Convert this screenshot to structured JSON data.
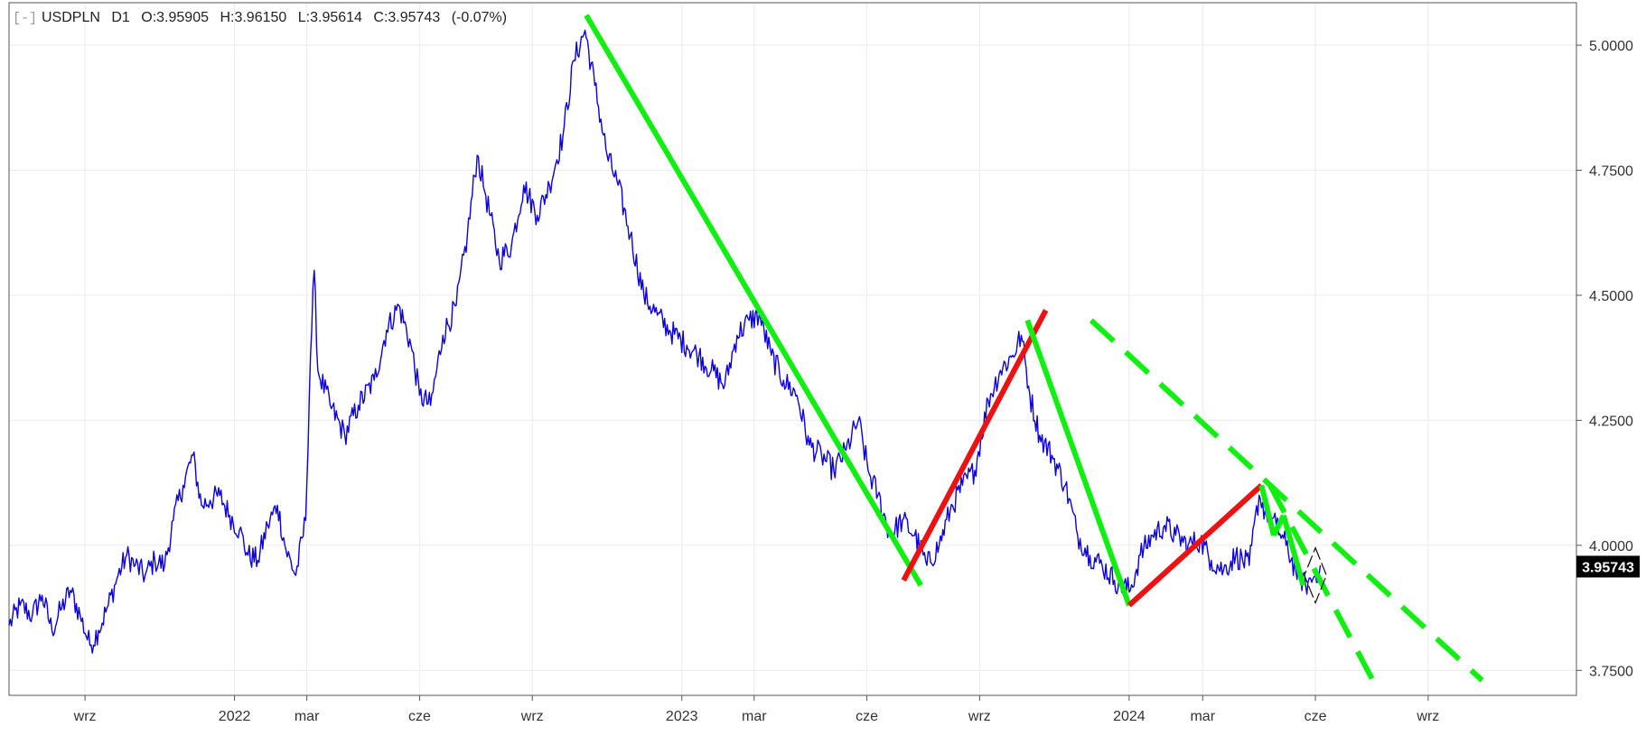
{
  "header": {
    "collapse_label": "[-]",
    "symbol": "USDPLN",
    "timeframe": "D1",
    "open": "O:3.95905",
    "high": "H:3.96150",
    "low": "L:3.95614",
    "close": "C:3.95743",
    "change": "(-0.07%)"
  },
  "colors": {
    "price": "#0b00e0",
    "up_trend": "#ee1111",
    "down_trend": "#11ee11",
    "grid": "#ececec",
    "axis": "#555555",
    "last_price_bg": "#000000"
  },
  "chart_data": {
    "type": "line",
    "symbol": "USDPLN",
    "timeframe": "D1",
    "ylim": [
      3.7,
      5.085
    ],
    "y_ticks": [
      {
        "value": 3.75,
        "label": "3.7500"
      },
      {
        "value": 4.0,
        "label": "4.0000"
      },
      {
        "value": 4.25,
        "label": "4.2500"
      },
      {
        "value": 4.5,
        "label": "4.5000"
      },
      {
        "value": 4.75,
        "label": "4.7500"
      },
      {
        "value": 5.0,
        "label": "5.0000"
      }
    ],
    "x_range": [
      "2021-07-01",
      "2024-12-31"
    ],
    "x_ticks": [
      {
        "date": "2021-09-01",
        "label": "wrz"
      },
      {
        "date": "2022-01-01",
        "label": "2022"
      },
      {
        "date": "2022-03-01",
        "label": "mar"
      },
      {
        "date": "2022-06-01",
        "label": "cze"
      },
      {
        "date": "2022-09-01",
        "label": "wrz"
      },
      {
        "date": "2023-01-01",
        "label": "2023"
      },
      {
        "date": "2023-03-01",
        "label": "mar"
      },
      {
        "date": "2023-06-01",
        "label": "cze"
      },
      {
        "date": "2023-09-01",
        "label": "wrz"
      },
      {
        "date": "2024-01-01",
        "label": "2024"
      },
      {
        "date": "2024-03-01",
        "label": "mar"
      },
      {
        "date": "2024-06-01",
        "label": "cze"
      },
      {
        "date": "2024-09-01",
        "label": "wrz"
      }
    ],
    "last_price": {
      "value": 3.95743,
      "label": "3.95743"
    },
    "grid": true,
    "series": [
      {
        "points": [
          [
            "2021-07-01",
            3.84
          ],
          [
            "2021-07-10",
            3.88
          ],
          [
            "2021-07-20",
            3.86
          ],
          [
            "2021-07-28",
            3.9
          ],
          [
            "2021-08-05",
            3.83
          ],
          [
            "2021-08-12",
            3.87
          ],
          [
            "2021-08-20",
            3.91
          ],
          [
            "2021-08-28",
            3.86
          ],
          [
            "2021-09-05",
            3.8
          ],
          [
            "2021-09-12",
            3.83
          ],
          [
            "2021-09-20",
            3.88
          ],
          [
            "2021-09-28",
            3.94
          ],
          [
            "2021-10-05",
            3.98
          ],
          [
            "2021-10-12",
            3.96
          ],
          [
            "2021-10-20",
            3.94
          ],
          [
            "2021-10-28",
            3.97
          ],
          [
            "2021-11-05",
            3.96
          ],
          [
            "2021-11-12",
            4.05
          ],
          [
            "2021-11-20",
            4.12
          ],
          [
            "2021-11-28",
            4.18
          ],
          [
            "2021-12-05",
            4.08
          ],
          [
            "2021-12-12",
            4.09
          ],
          [
            "2021-12-20",
            4.1
          ],
          [
            "2021-12-28",
            4.06
          ],
          [
            "2022-01-05",
            4.03
          ],
          [
            "2022-01-12",
            3.98
          ],
          [
            "2022-01-20",
            3.97
          ],
          [
            "2022-01-28",
            4.04
          ],
          [
            "2022-02-05",
            4.08
          ],
          [
            "2022-02-12",
            3.99
          ],
          [
            "2022-02-20",
            3.94
          ],
          [
            "2022-02-28",
            4.05
          ],
          [
            "2022-03-04",
            4.38
          ],
          [
            "2022-03-07",
            4.55
          ],
          [
            "2022-03-10",
            4.35
          ],
          [
            "2022-03-20",
            4.28
          ],
          [
            "2022-04-01",
            4.22
          ],
          [
            "2022-04-12",
            4.28
          ],
          [
            "2022-04-25",
            4.33
          ],
          [
            "2022-05-05",
            4.43
          ],
          [
            "2022-05-15",
            4.48
          ],
          [
            "2022-05-25",
            4.4
          ],
          [
            "2022-06-01",
            4.3
          ],
          [
            "2022-06-10",
            4.28
          ],
          [
            "2022-06-20",
            4.42
          ],
          [
            "2022-07-01",
            4.48
          ],
          [
            "2022-07-10",
            4.62
          ],
          [
            "2022-07-18",
            4.78
          ],
          [
            "2022-07-25",
            4.7
          ],
          [
            "2022-08-05",
            4.57
          ],
          [
            "2022-08-15",
            4.6
          ],
          [
            "2022-08-25",
            4.72
          ],
          [
            "2022-09-05",
            4.66
          ],
          [
            "2022-09-15",
            4.72
          ],
          [
            "2022-09-26",
            4.82
          ],
          [
            "2022-10-05",
            4.97
          ],
          [
            "2022-10-14",
            5.03
          ],
          [
            "2022-10-22",
            4.92
          ],
          [
            "2022-11-01",
            4.78
          ],
          [
            "2022-11-10",
            4.72
          ],
          [
            "2022-11-20",
            4.62
          ],
          [
            "2022-12-01",
            4.5
          ],
          [
            "2022-12-12",
            4.46
          ],
          [
            "2022-12-22",
            4.43
          ],
          [
            "2023-01-05",
            4.4
          ],
          [
            "2023-01-15",
            4.38
          ],
          [
            "2023-01-25",
            4.35
          ],
          [
            "2023-02-05",
            4.32
          ],
          [
            "2023-02-15",
            4.42
          ],
          [
            "2023-02-25",
            4.45
          ],
          [
            "2023-03-05",
            4.46
          ],
          [
            "2023-03-15",
            4.38
          ],
          [
            "2023-03-25",
            4.33
          ],
          [
            "2023-04-05",
            4.3
          ],
          [
            "2023-04-15",
            4.2
          ],
          [
            "2023-04-25",
            4.18
          ],
          [
            "2023-05-05",
            4.15
          ],
          [
            "2023-05-15",
            4.19
          ],
          [
            "2023-05-25",
            4.25
          ],
          [
            "2023-06-02",
            4.15
          ],
          [
            "2023-06-10",
            4.1
          ],
          [
            "2023-06-20",
            4.02
          ],
          [
            "2023-06-30",
            4.05
          ],
          [
            "2023-07-10",
            4.02
          ],
          [
            "2023-07-20",
            3.96
          ],
          [
            "2023-07-30",
            4.0
          ],
          [
            "2023-08-08",
            4.07
          ],
          [
            "2023-08-18",
            4.12
          ],
          [
            "2023-08-28",
            4.15
          ],
          [
            "2023-09-08",
            4.29
          ],
          [
            "2023-09-18",
            4.35
          ],
          [
            "2023-09-28",
            4.38
          ],
          [
            "2023-10-05",
            4.42
          ],
          [
            "2023-10-12",
            4.3
          ],
          [
            "2023-10-20",
            4.22
          ],
          [
            "2023-10-30",
            4.18
          ],
          [
            "2023-11-10",
            4.12
          ],
          [
            "2023-11-20",
            4.02
          ],
          [
            "2023-11-30",
            3.98
          ],
          [
            "2023-12-10",
            3.96
          ],
          [
            "2023-12-20",
            3.93
          ],
          [
            "2024-01-02",
            3.91
          ],
          [
            "2024-01-10",
            3.98
          ],
          [
            "2024-01-20",
            4.02
          ],
          [
            "2024-01-30",
            4.04
          ],
          [
            "2024-02-08",
            4.02
          ],
          [
            "2024-02-18",
            4.0
          ],
          [
            "2024-02-28",
            4.01
          ],
          [
            "2024-03-08",
            3.97
          ],
          [
            "2024-03-18",
            3.95
          ],
          [
            "2024-03-28",
            3.98
          ],
          [
            "2024-04-08",
            3.96
          ],
          [
            "2024-04-16",
            4.1
          ],
          [
            "2024-04-22",
            4.06
          ],
          [
            "2024-04-30",
            4.04
          ],
          [
            "2024-05-08",
            4.0
          ],
          [
            "2024-05-16",
            3.95
          ],
          [
            "2024-05-24",
            3.92
          ],
          [
            "2024-06-01",
            3.94
          ],
          [
            "2024-06-05",
            3.96
          ]
        ]
      }
    ],
    "trendlines": [
      {
        "color": "down_trend",
        "dashed": false,
        "from": [
          "2022-10-15",
          5.06
        ],
        "to": [
          "2023-07-15",
          3.92
        ]
      },
      {
        "color": "up_trend",
        "dashed": false,
        "from": [
          "2023-07-01",
          3.93
        ],
        "to": [
          "2023-10-25",
          4.47
        ]
      },
      {
        "color": "down_trend",
        "dashed": false,
        "from": [
          "2023-10-10",
          4.45
        ],
        "to": [
          "2024-01-01",
          3.88
        ]
      },
      {
        "color": "up_trend",
        "dashed": false,
        "from": [
          "2024-01-01",
          3.88
        ],
        "to": [
          "2024-04-18",
          4.12
        ]
      },
      {
        "color": "down_trend",
        "dashed": false,
        "from": [
          "2024-04-18",
          4.12
        ],
        "to": [
          "2024-04-28",
          4.02
        ]
      },
      {
        "color": "down_trend",
        "dashed": false,
        "from": [
          "2024-04-28",
          4.02
        ],
        "to": [
          "2024-05-06",
          4.06
        ]
      },
      {
        "color": "down_trend",
        "dashed": false,
        "from": [
          "2024-05-06",
          4.06
        ],
        "to": [
          "2024-05-22",
          3.92
        ]
      },
      {
        "color": "down_trend",
        "dashed": true,
        "from": [
          "2023-12-01",
          4.45
        ],
        "to": [
          "2024-10-15",
          3.73
        ]
      },
      {
        "color": "down_trend",
        "dashed": true,
        "from": [
          "2024-04-25",
          4.12
        ],
        "to": [
          "2024-07-20",
          3.72
        ]
      }
    ],
    "annotations": [
      {
        "type": "diamond",
        "center": [
          "2024-06-01",
          3.94
        ],
        "half_width_days": 9,
        "half_height": 0.055
      }
    ]
  }
}
